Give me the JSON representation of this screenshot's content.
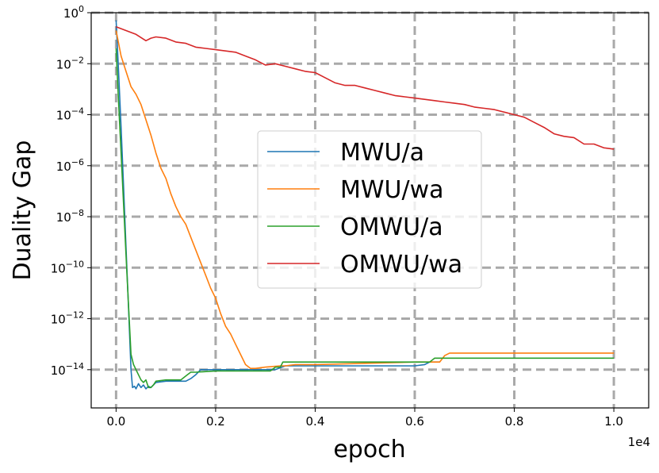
{
  "chart_data": {
    "type": "line",
    "xlabel": "epoch",
    "ylabel": "Duality Gap",
    "x_offset_label": "1e4",
    "xlim": [
      -0.05,
      1.07
    ],
    "ylim_log10": [
      -15.5,
      0.0
    ],
    "y_scale": "log",
    "grid": true,
    "legend_position": "center-right",
    "x_ticks": [
      {
        "value": 0.0,
        "label": "0.0"
      },
      {
        "value": 0.2,
        "label": "0.2"
      },
      {
        "value": 0.4,
        "label": "0.4"
      },
      {
        "value": 0.6,
        "label": "0.6"
      },
      {
        "value": 0.8,
        "label": "0.8"
      },
      {
        "value": 1.0,
        "label": "1.0"
      }
    ],
    "y_ticks": [
      {
        "exp": 0,
        "base": "10",
        "sup": "0"
      },
      {
        "exp": -2,
        "base": "10",
        "sup": "−2"
      },
      {
        "exp": -4,
        "base": "10",
        "sup": "−4"
      },
      {
        "exp": -6,
        "base": "10",
        "sup": "−6"
      },
      {
        "exp": -8,
        "base": "10",
        "sup": "−8"
      },
      {
        "exp": -10,
        "base": "10",
        "sup": "−10"
      },
      {
        "exp": -12,
        "base": "10",
        "sup": "−12"
      },
      {
        "exp": -14,
        "base": "10",
        "sup": "−14"
      }
    ],
    "series": [
      {
        "name": "MWU/a",
        "color": "#1f77b4",
        "x": [
          0.0,
          0.005,
          0.01,
          0.015,
          0.02,
          0.025,
          0.03,
          0.033,
          0.037,
          0.04,
          0.045,
          0.05,
          0.055,
          0.06,
          0.065,
          0.07,
          0.075,
          0.08,
          0.1,
          0.14,
          0.15,
          0.16,
          0.17,
          0.2,
          0.25,
          0.3,
          0.32,
          0.34,
          0.4,
          0.5,
          0.6,
          0.62,
          0.63,
          0.65
        ],
        "log10_y": [
          -0.3,
          -2.3,
          -4.5,
          -6.8,
          -9.2,
          -11.6,
          -14.0,
          -14.7,
          -14.65,
          -14.75,
          -14.55,
          -14.7,
          -14.6,
          -14.75,
          -14.65,
          -14.7,
          -14.6,
          -14.5,
          -14.45,
          -14.45,
          -14.35,
          -14.2,
          -14.0,
          -14.0,
          -14.0,
          -14.0,
          -14.0,
          -13.85,
          -13.85,
          -13.85,
          -13.85,
          -13.8,
          -13.7,
          -13.7
        ]
      },
      {
        "name": "MWU/wa",
        "color": "#ff7f0e",
        "x": [
          0.0,
          0.01,
          0.02,
          0.03,
          0.04,
          0.05,
          0.06,
          0.07,
          0.08,
          0.09,
          0.1,
          0.11,
          0.12,
          0.13,
          0.14,
          0.15,
          0.16,
          0.17,
          0.18,
          0.19,
          0.2,
          0.21,
          0.22,
          0.23,
          0.24,
          0.25,
          0.26,
          0.27,
          0.28,
          0.3,
          0.33,
          0.34,
          0.36,
          0.4,
          0.5,
          0.6,
          0.65,
          0.66,
          0.67,
          0.7,
          0.75,
          0.8,
          0.85,
          0.9,
          0.95,
          1.0
        ],
        "log10_y": [
          -0.7,
          -1.7,
          -2.3,
          -2.9,
          -3.2,
          -3.6,
          -4.2,
          -4.8,
          -5.5,
          -6.1,
          -6.5,
          -7.1,
          -7.6,
          -8.0,
          -8.3,
          -8.8,
          -9.3,
          -9.8,
          -10.3,
          -10.8,
          -11.2,
          -11.8,
          -12.3,
          -12.6,
          -13.0,
          -13.4,
          -13.8,
          -13.95,
          -13.95,
          -13.9,
          -13.85,
          -13.85,
          -13.8,
          -13.8,
          -13.75,
          -13.7,
          -13.7,
          -13.45,
          -13.35,
          -13.35,
          -13.35,
          -13.35,
          -13.35,
          -13.35,
          -13.35,
          -13.35
        ]
      },
      {
        "name": "OMWU/a",
        "color": "#2ca02c",
        "x": [
          0.0,
          0.005,
          0.01,
          0.015,
          0.02,
          0.025,
          0.03,
          0.035,
          0.04,
          0.045,
          0.05,
          0.055,
          0.06,
          0.065,
          0.07,
          0.075,
          0.08,
          0.1,
          0.13,
          0.14,
          0.15,
          0.16,
          0.2,
          0.25,
          0.31,
          0.32,
          0.33,
          0.335,
          0.4,
          0.5,
          0.6,
          0.63,
          0.64,
          0.65,
          0.66,
          0.67,
          0.7,
          0.8,
          0.9,
          1.0
        ],
        "log10_y": [
          -1.4,
          -3.5,
          -5.5,
          -7.5,
          -9.5,
          -11.5,
          -13.4,
          -13.8,
          -14.0,
          -14.2,
          -14.4,
          -14.5,
          -14.4,
          -14.7,
          -14.7,
          -14.6,
          -14.45,
          -14.4,
          -14.4,
          -14.25,
          -14.1,
          -14.1,
          -14.05,
          -14.05,
          -14.05,
          -13.9,
          -13.9,
          -13.7,
          -13.7,
          -13.7,
          -13.7,
          -13.7,
          -13.55,
          -13.55,
          -13.55,
          -13.55,
          -13.55,
          -13.55,
          -13.55,
          -13.55
        ]
      },
      {
        "name": "OMWU/wa",
        "color": "#d62728",
        "x": [
          0.0,
          0.02,
          0.04,
          0.06,
          0.07,
          0.08,
          0.1,
          0.12,
          0.14,
          0.16,
          0.18,
          0.2,
          0.22,
          0.24,
          0.26,
          0.28,
          0.3,
          0.32,
          0.34,
          0.36,
          0.38,
          0.4,
          0.42,
          0.44,
          0.46,
          0.48,
          0.5,
          0.52,
          0.54,
          0.56,
          0.58,
          0.6,
          0.62,
          0.64,
          0.66,
          0.68,
          0.7,
          0.72,
          0.74,
          0.76,
          0.78,
          0.8,
          0.82,
          0.84,
          0.86,
          0.88,
          0.9,
          0.92,
          0.94,
          0.96,
          0.98,
          1.0
        ],
        "log10_y": [
          -0.55,
          -0.7,
          -0.85,
          -1.1,
          -1.0,
          -0.95,
          -1.0,
          -1.15,
          -1.2,
          -1.35,
          -1.4,
          -1.45,
          -1.5,
          -1.55,
          -1.7,
          -1.85,
          -2.05,
          -2.0,
          -2.1,
          -2.2,
          -2.3,
          -2.35,
          -2.55,
          -2.75,
          -2.85,
          -2.85,
          -2.95,
          -3.05,
          -3.15,
          -3.25,
          -3.3,
          -3.35,
          -3.4,
          -3.45,
          -3.5,
          -3.55,
          -3.6,
          -3.7,
          -3.75,
          -3.8,
          -3.9,
          -4.0,
          -4.1,
          -4.3,
          -4.5,
          -4.75,
          -4.85,
          -4.9,
          -5.15,
          -5.15,
          -5.3,
          -5.35
        ]
      }
    ]
  }
}
